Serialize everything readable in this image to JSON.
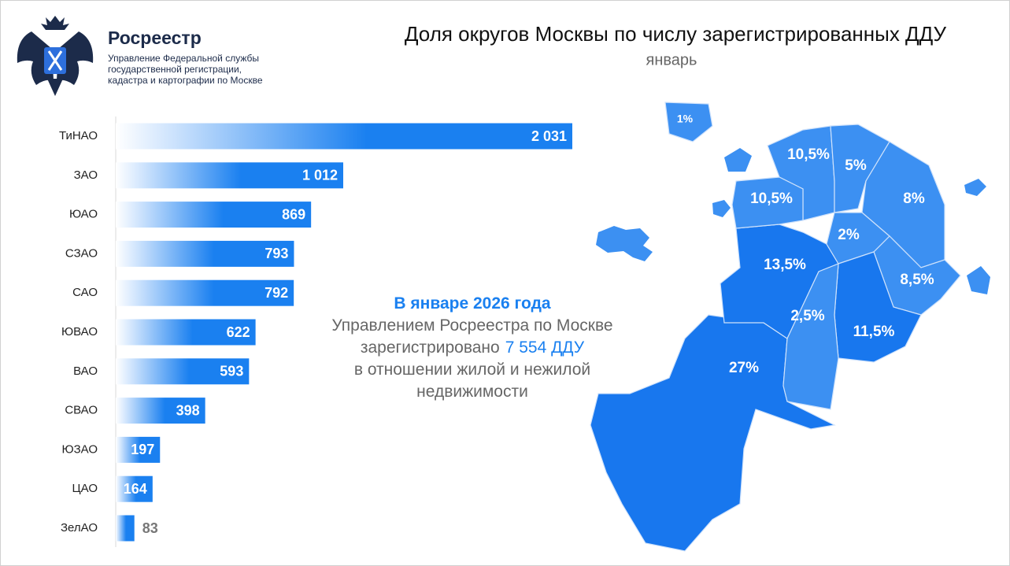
{
  "header": {
    "org": "Росреестр",
    "org_subtitle": [
      "Управление Федеральной службы",
      "государственной регистрации,",
      "кадастра и картографии по Москве"
    ]
  },
  "chart_data": {
    "type": "bar",
    "orientation": "horizontal",
    "title": "Доля округов Москвы по числу зарегистрированных ДДУ",
    "subtitle": "январь",
    "categories": [
      "ТиНАО",
      "ЗАО",
      "ЮАО",
      "СЗАО",
      "САО",
      "ЮВАО",
      "ВАО",
      "СВАО",
      "ЮЗАО",
      "ЦАО",
      "ЗелАО"
    ],
    "values": [
      2031,
      1012,
      869,
      793,
      792,
      622,
      593,
      398,
      197,
      164,
      83
    ],
    "value_labels": [
      "2 031",
      "1 012",
      "869",
      "793",
      "792",
      "622",
      "593",
      "398",
      "197",
      "164",
      "83"
    ],
    "color": "#1a80f0"
  },
  "annotation": {
    "lines": [
      [
        {
          "text": "В январе 2026 года",
          "highlight": true
        }
      ],
      [
        {
          "text": "Управлением Росреестра по Москве",
          "highlight": false
        }
      ],
      [
        {
          "text": "зарегистрировано",
          "highlight": false
        },
        {
          "text": "7 554 ДДУ",
          "highlight": true
        }
      ],
      [
        {
          "text": "в отношении жилой и нежилой",
          "highlight": false
        }
      ],
      [
        {
          "text": "недвижимости",
          "highlight": false
        }
      ]
    ],
    "highlight_color": "#1a80f0",
    "text_color": "#666666"
  },
  "map": {
    "shares": [
      {
        "value": 27,
        "label": "27%",
        "color": "#1877ee"
      },
      {
        "value": 13.5,
        "label": "13,5%",
        "color": "#1877ee"
      },
      {
        "value": 10.5,
        "label": "10,5%",
        "color": "#3c90f2"
      },
      {
        "value": 10.5,
        "label": "10,5%",
        "color": "#3c90f2"
      },
      {
        "value": 5,
        "label": "5%",
        "color": "#3c90f2"
      },
      {
        "value": 8,
        "label": "8%",
        "color": "#3c90f2"
      },
      {
        "value": 2,
        "label": "2%",
        "color": "#3c90f2"
      },
      {
        "value": 8.5,
        "label": "8,5%",
        "color": "#3c90f2"
      },
      {
        "value": 11.5,
        "label": "11,5%",
        "color": "#1877ee"
      },
      {
        "value": 2.5,
        "label": "2,5%",
        "color": "#3c90f2"
      },
      {
        "value": 1,
        "label": "1%",
        "color": "#3c90f2"
      }
    ]
  }
}
